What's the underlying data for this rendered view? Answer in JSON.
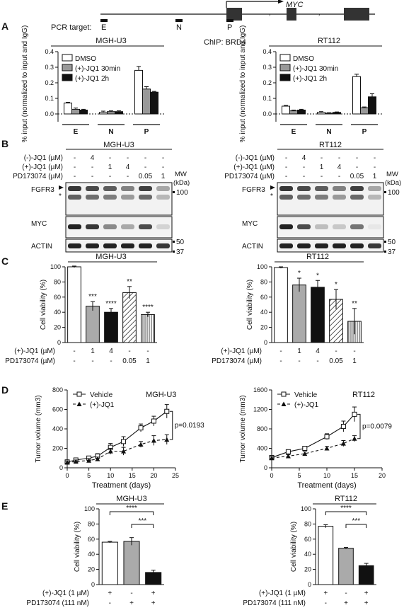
{
  "panel_labels": [
    "A",
    "B",
    "C",
    "D",
    "E"
  ],
  "gene": {
    "name": "MYC",
    "pcr_label": "PCR target:",
    "regions": [
      "E",
      "N",
      "P"
    ]
  },
  "chip_label": "ChIP: BRD4",
  "legend_A": [
    "DMSO",
    "(+)-JQ1 30min",
    "(+)-JQ1 2h"
  ],
  "ylabel_A": "% input (normalized to input and IgG)",
  "ylabel_C": "Cell viability (%)",
  "ylabel_D": "Tumor volume (mm3)",
  "xlabel_D": "Treatment (days)",
  "legend_D": [
    "Vehicle",
    "(+)-JQ1"
  ],
  "blot": {
    "row_labels": [
      "(-)-JQ1 (µM)",
      "(+)-JQ1 (µM)",
      "PD173074 (µM)"
    ],
    "mw_label": "MW (kDa)",
    "left": {
      "title": "MGH-U3",
      "rows": [
        [
          "-",
          "4",
          "-",
          "-",
          "-",
          "-"
        ],
        [
          "-",
          "-",
          "1",
          "4",
          "-",
          "-"
        ],
        [
          "-",
          "-",
          "-",
          "-",
          "0.05",
          "1"
        ]
      ],
      "bands": [
        "FGFR3",
        "MYC",
        "ACTIN"
      ],
      "mw": [
        "100",
        "50",
        "37"
      ]
    },
    "right": {
      "title": "RT112",
      "rows": [
        [
          "-",
          "4",
          "-",
          "-",
          "-",
          "-"
        ],
        [
          "-",
          "-",
          "1",
          "4",
          "-",
          "-"
        ],
        [
          "-",
          "-",
          "-",
          "-",
          "0.05",
          "1"
        ]
      ],
      "bands": [
        "FGFR3",
        "MYC",
        "ACTIN"
      ],
      "mw": [
        "100",
        "50",
        "37"
      ]
    }
  },
  "c_rows": [
    "(+)-JQ1 (µM)",
    "PD173074 (µM)"
  ],
  "e_rows": [
    "(+)-JQ1 (1 µM)",
    "PD173074 (111 nM)"
  ],
  "chart_data": [
    {
      "type": "bar",
      "panel": "A",
      "title": "MGH-U3",
      "categories": [
        "E",
        "N",
        "P"
      ],
      "ylabel": "% input (normalized to input and IgG)",
      "ylim": [
        -0.05,
        0.4
      ],
      "series": [
        {
          "name": "DMSO",
          "values": [
            0.07,
            0.01,
            0.28
          ],
          "err": [
            0.005,
            0.008,
            0.025
          ]
        },
        {
          "name": "(+)-JQ1 30min",
          "values": [
            0.03,
            0.015,
            0.16
          ],
          "err": [
            0.008,
            0.005,
            0.015
          ]
        },
        {
          "name": "(+)-JQ1 2h",
          "values": [
            0.025,
            0.015,
            0.14
          ],
          "err": [
            0.005,
            0.005,
            0.005
          ]
        }
      ]
    },
    {
      "type": "bar",
      "panel": "A",
      "title": "RT112",
      "categories": [
        "E",
        "N",
        "P"
      ],
      "ylabel": "% input (normalized to input and IgG)",
      "ylim": [
        -0.05,
        0.4
      ],
      "series": [
        {
          "name": "DMSO",
          "values": [
            0.05,
            0.01,
            0.24
          ],
          "err": [
            0.005,
            0.005,
            0.015
          ]
        },
        {
          "name": "(+)-JQ1 30min",
          "values": [
            0.02,
            0.005,
            0.04
          ],
          "err": [
            0.005,
            0.003,
            0.005
          ]
        },
        {
          "name": "(+)-JQ1 2h",
          "values": [
            0.025,
            0.01,
            0.11
          ],
          "err": [
            0.005,
            0.003,
            0.02
          ]
        }
      ]
    },
    {
      "type": "bar",
      "panel": "C",
      "title": "MGH-U3",
      "categories": [
        "-/-",
        "1/-",
        "4/-",
        "-/0.05",
        "-/1"
      ],
      "ylabel": "Cell viability (%)",
      "ylim": [
        0,
        100
      ],
      "values": [
        100,
        48,
        40,
        66,
        37
      ],
      "err": [
        1,
        6,
        5,
        8,
        3
      ],
      "significance": [
        "",
        "***",
        "****",
        "**",
        "****"
      ]
    },
    {
      "type": "bar",
      "panel": "C",
      "title": "RT112",
      "categories": [
        "-/-",
        "1/-",
        "4/-",
        "-/0.05",
        "-/1"
      ],
      "ylabel": "Cell viability (%)",
      "ylim": [
        0,
        100
      ],
      "values": [
        99,
        76,
        73,
        57,
        28
      ],
      "err": [
        1,
        9,
        9,
        13,
        17
      ],
      "significance": [
        "",
        "*",
        "*",
        "*",
        "**"
      ]
    },
    {
      "type": "line",
      "panel": "D",
      "title": "MGH-U3",
      "xlabel": "Treatment (days)",
      "ylabel": "Tumor volume (mm3)",
      "xlim": [
        0,
        25
      ],
      "ylim": [
        0,
        800
      ],
      "p_value": "p=0.0193",
      "series": [
        {
          "name": "Vehicle",
          "x": [
            0,
            2,
            5,
            7,
            10,
            13,
            17,
            20,
            23
          ],
          "y": [
            60,
            80,
            100,
            120,
            210,
            270,
            410,
            480,
            580
          ],
          "err": [
            20,
            20,
            20,
            25,
            40,
            50,
            40,
            50,
            70
          ]
        },
        {
          "name": "(+)-JQ1",
          "x": [
            0,
            2,
            5,
            7,
            10,
            13,
            17,
            20,
            23
          ],
          "y": [
            55,
            65,
            75,
            90,
            170,
            170,
            240,
            280,
            290
          ],
          "err": [
            15,
            15,
            20,
            20,
            30,
            40,
            30,
            50,
            50
          ]
        }
      ]
    },
    {
      "type": "line",
      "panel": "D",
      "title": "RT112",
      "xlabel": "Treatment (days)",
      "ylabel": "Tumor volume (mm3)",
      "xlim": [
        0,
        20
      ],
      "ylim": [
        0,
        1600
      ],
      "p_value": "p=0.0079",
      "series": [
        {
          "name": "Vehicle",
          "x": [
            0,
            3,
            6,
            10,
            13,
            15
          ],
          "y": [
            210,
            330,
            400,
            640,
            850,
            1100
          ],
          "err": [
            40,
            40,
            40,
            60,
            110,
            150
          ]
        },
        {
          "name": "(+)-JQ1",
          "x": [
            0,
            3,
            6,
            10,
            13,
            15
          ],
          "y": [
            200,
            240,
            290,
            400,
            500,
            600
          ],
          "err": [
            30,
            30,
            40,
            40,
            60,
            60
          ]
        }
      ]
    },
    {
      "type": "bar",
      "panel": "E",
      "title": "MGH-U3",
      "categories": [
        "+/-",
        "-/+",
        "+/+"
      ],
      "ylabel": "Cell viability (%)",
      "ylim": [
        0,
        100
      ],
      "values": [
        56,
        57,
        16
      ],
      "err": [
        1,
        5,
        3
      ],
      "brackets": [
        {
          "from": 0,
          "to": 2,
          "label": "****"
        },
        {
          "from": 1,
          "to": 2,
          "label": "***"
        }
      ]
    },
    {
      "type": "bar",
      "panel": "E",
      "title": "RT112",
      "categories": [
        "+/-",
        "-/+",
        "+/+"
      ],
      "ylabel": "Cell viability (%)",
      "ylim": [
        0,
        100
      ],
      "values": [
        77,
        48,
        25
      ],
      "err": [
        2,
        1,
        3
      ],
      "brackets": [
        {
          "from": 0,
          "to": 2,
          "label": "****"
        },
        {
          "from": 1,
          "to": 2,
          "label": "***"
        }
      ]
    }
  ]
}
